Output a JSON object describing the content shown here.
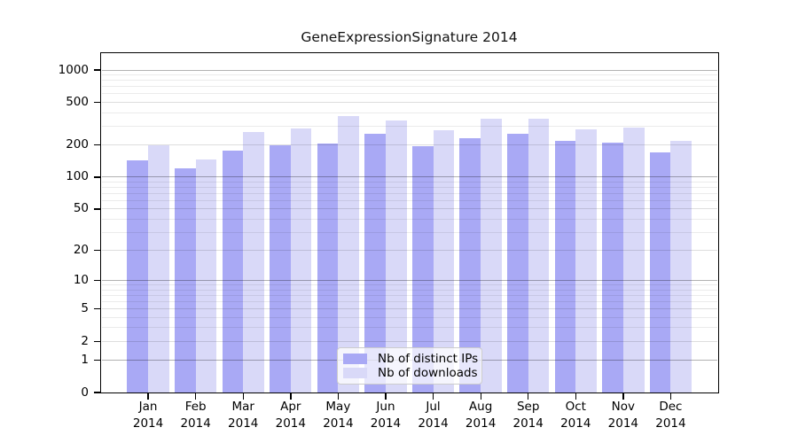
{
  "title": "GeneExpressionSignature 2014",
  "y_axis": {
    "tick_labels": [
      "0",
      "1",
      "2",
      "5",
      "10",
      "20",
      "50",
      "100",
      "200",
      "500",
      "1000"
    ]
  },
  "x_axis": {
    "months": [
      "Jan",
      "Feb",
      "Mar",
      "Apr",
      "May",
      "Jun",
      "Jul",
      "Aug",
      "Sep",
      "Oct",
      "Nov",
      "Dec"
    ],
    "year": "2014"
  },
  "legend": {
    "items": [
      {
        "label": "Nb of distinct IPs",
        "color": "#a9a9f5"
      },
      {
        "label": "Nb of downloads",
        "color": "#d9d9f8"
      }
    ]
  },
  "colors": {
    "bar_distinct_ips": "#a9a9f5",
    "bar_downloads": "#d9d9f8",
    "grid_major": "#b3b3b3",
    "grid_minor": "#ebebeb",
    "axis": "#000000",
    "legend_border": "#cccccc"
  },
  "chart_data": {
    "type": "bar",
    "title": "GeneExpressionSignature 2014",
    "y_scale": "log10(1+value)",
    "yticks": [
      0,
      1,
      2,
      5,
      10,
      20,
      50,
      100,
      200,
      500,
      1000
    ],
    "ylim": [
      0,
      1440
    ],
    "grid": "on",
    "legend_position": "lower center",
    "categories": [
      "Jan 2014",
      "Feb 2014",
      "Mar 2014",
      "Apr 2014",
      "May 2014",
      "Jun 2014",
      "Jul 2014",
      "Aug 2014",
      "Sep 2014",
      "Oct 2014",
      "Nov 2014",
      "Dec 2014"
    ],
    "series": [
      {
        "name": "Nb of distinct IPs",
        "color": "#a9a9f5",
        "values": [
          143,
          120,
          176,
          200,
          207,
          255,
          194,
          230,
          252,
          219,
          209,
          170
        ]
      },
      {
        "name": "Nb of downloads",
        "color": "#d9d9f8",
        "values": [
          200,
          147,
          263,
          284,
          371,
          339,
          272,
          350,
          352,
          280,
          293,
          219
        ]
      }
    ]
  }
}
